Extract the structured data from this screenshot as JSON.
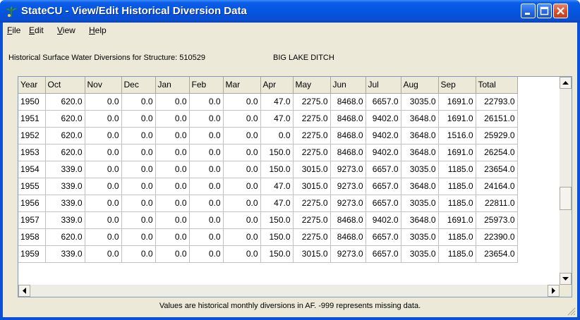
{
  "window": {
    "title": "StateCU - View/Edit Historical Diversion Data"
  },
  "menu": [
    "File",
    "Edit",
    "View",
    "Help"
  ],
  "structure": {
    "label": "Historical Surface Water Diversions for Structure: 510529",
    "name": "BIG LAKE DITCH"
  },
  "table": {
    "columns": [
      "Year",
      "Oct",
      "Nov",
      "Dec",
      "Jan",
      "Feb",
      "Mar",
      "Apr",
      "May",
      "Jun",
      "Jul",
      "Aug",
      "Sep",
      "Total"
    ],
    "rows": [
      [
        "1950",
        "620.0",
        "0.0",
        "0.0",
        "0.0",
        "0.0",
        "0.0",
        "47.0",
        "2275.0",
        "8468.0",
        "6657.0",
        "3035.0",
        "1691.0",
        "22793.0"
      ],
      [
        "1951",
        "620.0",
        "0.0",
        "0.0",
        "0.0",
        "0.0",
        "0.0",
        "47.0",
        "2275.0",
        "8468.0",
        "9402.0",
        "3648.0",
        "1691.0",
        "26151.0"
      ],
      [
        "1952",
        "620.0",
        "0.0",
        "0.0",
        "0.0",
        "0.0",
        "0.0",
        "0.0",
        "2275.0",
        "8468.0",
        "9402.0",
        "3648.0",
        "1516.0",
        "25929.0"
      ],
      [
        "1953",
        "620.0",
        "0.0",
        "0.0",
        "0.0",
        "0.0",
        "0.0",
        "150.0",
        "2275.0",
        "8468.0",
        "9402.0",
        "3648.0",
        "1691.0",
        "26254.0"
      ],
      [
        "1954",
        "339.0",
        "0.0",
        "0.0",
        "0.0",
        "0.0",
        "0.0",
        "150.0",
        "3015.0",
        "9273.0",
        "6657.0",
        "3035.0",
        "1185.0",
        "23654.0"
      ],
      [
        "1955",
        "339.0",
        "0.0",
        "0.0",
        "0.0",
        "0.0",
        "0.0",
        "47.0",
        "3015.0",
        "9273.0",
        "6657.0",
        "3648.0",
        "1185.0",
        "24164.0"
      ],
      [
        "1956",
        "339.0",
        "0.0",
        "0.0",
        "0.0",
        "0.0",
        "0.0",
        "47.0",
        "2275.0",
        "9273.0",
        "6657.0",
        "3035.0",
        "1185.0",
        "22811.0"
      ],
      [
        "1957",
        "339.0",
        "0.0",
        "0.0",
        "0.0",
        "0.0",
        "0.0",
        "150.0",
        "2275.0",
        "8468.0",
        "9402.0",
        "3648.0",
        "1691.0",
        "25973.0"
      ],
      [
        "1958",
        "620.0",
        "0.0",
        "0.0",
        "0.0",
        "0.0",
        "0.0",
        "150.0",
        "2275.0",
        "8468.0",
        "6657.0",
        "3035.0",
        "1185.0",
        "22390.0"
      ],
      [
        "1959",
        "339.0",
        "0.0",
        "0.0",
        "0.0",
        "0.0",
        "0.0",
        "150.0",
        "3015.0",
        "9273.0",
        "6657.0",
        "3035.0",
        "1185.0",
        "23654.0"
      ]
    ]
  },
  "footer": "Values are historical monthly diversions in AF.  -999 represents missing data.",
  "icons": [
    "app-icon",
    "minimize-icon",
    "maximize-icon",
    "close-icon",
    "scroll-up-icon",
    "scroll-down-icon",
    "scroll-left-icon",
    "scroll-right-icon",
    "resize-grip-icon"
  ]
}
